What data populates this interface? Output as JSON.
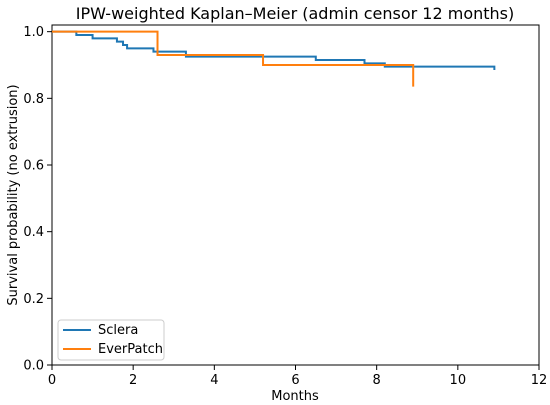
{
  "chart_data": {
    "type": "line",
    "title": "IPW-weighted Kaplan–Meier (admin censor 12 months)",
    "xlabel": "Months",
    "ylabel": "Survival probability (no extrusion)",
    "xlim": [
      0,
      12
    ],
    "ylim": [
      0.0,
      1.02
    ],
    "x_ticks": [
      0,
      2,
      4,
      6,
      8,
      10,
      12
    ],
    "y_ticks": [
      0.0,
      0.2,
      0.4,
      0.6,
      0.8,
      1.0
    ],
    "x_tick_labels": [
      "0",
      "2",
      "4",
      "6",
      "8",
      "10",
      "12"
    ],
    "y_tick_labels": [
      "0.0",
      "0.2",
      "0.4",
      "0.6",
      "0.8",
      "1.0"
    ],
    "grid": false,
    "legend_position": "lower-left",
    "series": [
      {
        "name": "Sclera",
        "color": "#1f77b4",
        "step": "post",
        "points": [
          [
            0,
            1.0
          ],
          [
            0.6,
            0.99
          ],
          [
            1.0,
            0.98
          ],
          [
            1.6,
            0.97
          ],
          [
            1.75,
            0.96
          ],
          [
            1.85,
            0.95
          ],
          [
            2.5,
            0.94
          ],
          [
            3.3,
            0.925
          ],
          [
            6.5,
            0.915
          ],
          [
            7.7,
            0.905
          ],
          [
            8.2,
            0.895
          ],
          [
            10.9,
            0.885
          ]
        ]
      },
      {
        "name": "EverPatch",
        "color": "#ff7f0e",
        "step": "post",
        "points": [
          [
            0,
            1.0
          ],
          [
            2.6,
            0.93
          ],
          [
            5.2,
            0.9
          ],
          [
            8.9,
            0.835
          ]
        ]
      }
    ]
  }
}
